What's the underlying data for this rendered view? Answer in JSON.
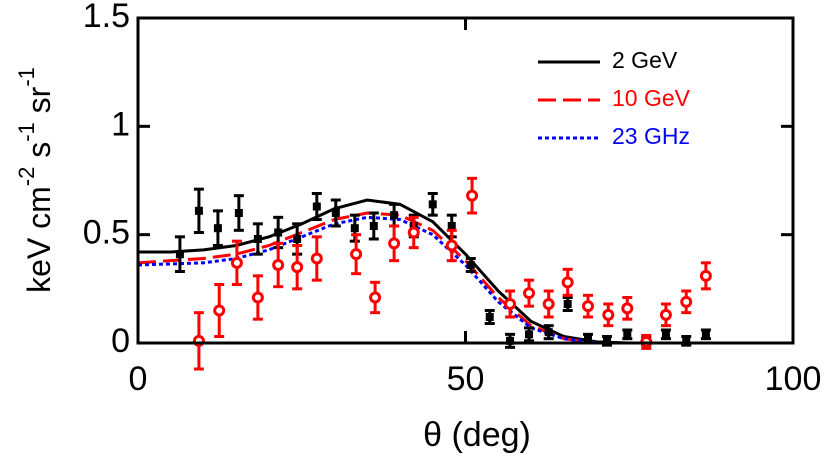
{
  "chart_data": {
    "type": "line",
    "xlabel": "θ (deg)",
    "ylabel": [
      "keV cm",
      "-2",
      " s",
      "-1",
      " sr",
      "-1"
    ],
    "xlim": [
      0,
      100
    ],
    "ylim": [
      0,
      1.5
    ],
    "xticks": [
      0,
      50,
      100
    ],
    "yticks": [
      0,
      0.5,
      1,
      1.5
    ],
    "legend": "upper right",
    "series": [
      {
        "type": "line",
        "name": "2 GeV",
        "color": "#000000",
        "dash": "solid",
        "x": [
          0,
          5,
          10,
          15,
          20,
          25,
          30,
          35,
          40,
          45,
          50,
          55,
          60,
          65,
          70,
          75,
          80,
          85,
          90,
          95,
          100
        ],
        "values": [
          0.42,
          0.42,
          0.43,
          0.45,
          0.49,
          0.55,
          0.62,
          0.66,
          0.64,
          0.56,
          0.41,
          0.24,
          0.1,
          0.03,
          0.005,
          0,
          0,
          0,
          0,
          0,
          0
        ]
      },
      {
        "type": "line",
        "name": "10 GeV",
        "color": "#ff0000",
        "dash": "dashed",
        "x": [
          0,
          5,
          10,
          15,
          20,
          25,
          30,
          35,
          40,
          45,
          50,
          55,
          60,
          65,
          70,
          75,
          80,
          85,
          90,
          95,
          100
        ],
        "values": [
          0.37,
          0.38,
          0.39,
          0.41,
          0.45,
          0.51,
          0.57,
          0.6,
          0.59,
          0.52,
          0.38,
          0.21,
          0.08,
          0.02,
          0,
          0,
          0,
          0,
          0,
          0,
          0
        ]
      },
      {
        "type": "line",
        "name": "23 GHz",
        "color": "#0000ff",
        "dash": "dotted",
        "x": [
          0,
          5,
          10,
          15,
          20,
          25,
          30,
          35,
          40,
          45,
          50,
          55,
          60,
          65,
          70,
          75,
          80,
          85,
          90,
          95,
          100
        ],
        "values": [
          0.36,
          0.365,
          0.37,
          0.39,
          0.43,
          0.49,
          0.55,
          0.58,
          0.57,
          0.5,
          0.36,
          0.19,
          0.07,
          0.02,
          0,
          0,
          0,
          0,
          0,
          0,
          0
        ]
      },
      {
        "type": "errorbar",
        "color": "#000000",
        "marker": "square",
        "x": [
          6.4,
          9.3,
          12.2,
          15.4,
          18.3,
          21.4,
          24.3,
          27.3,
          30.2,
          33.1,
          36,
          39.1,
          42.1,
          45,
          47.9,
          50.8,
          53.7,
          56.8,
          59.7,
          62.7,
          65.6,
          68.7,
          71.6,
          74.7,
          77.6,
          80.6,
          83.7,
          86.7
        ],
        "values": [
          0.41,
          0.61,
          0.53,
          0.6,
          0.48,
          0.51,
          0.48,
          0.63,
          0.6,
          0.53,
          0.54,
          0.59,
          0.54,
          0.64,
          0.54,
          0.36,
          0.12,
          0.01,
          0.04,
          0.05,
          0.18,
          0.02,
          0.01,
          0.04,
          0.01,
          0.04,
          0.01,
          0.04
        ],
        "errors": [
          0.08,
          0.1,
          0.08,
          0.08,
          0.07,
          0.07,
          0.07,
          0.06,
          0.06,
          0.06,
          0.06,
          0.05,
          0.05,
          0.05,
          0.05,
          0.03,
          0.03,
          0.03,
          0.03,
          0.03,
          0.03,
          0.02,
          0.02,
          0.02,
          0.02,
          0.02,
          0.02,
          0.02
        ]
      },
      {
        "type": "errorbar",
        "color": "#ff0000",
        "marker": "circle",
        "x": [
          9.3,
          12.4,
          15.1,
          18.3,
          21.4,
          24.3,
          27.3,
          33.3,
          36.2,
          39.1,
          42.1,
          47.9,
          51,
          56.8,
          59.7,
          62.7,
          65.6,
          68.7,
          71.8,
          74.7,
          77.6,
          80.6,
          83.7,
          86.7
        ],
        "values": [
          0.01,
          0.15,
          0.37,
          0.21,
          0.36,
          0.35,
          0.39,
          0.41,
          0.21,
          0.46,
          0.51,
          0.45,
          0.68,
          0.18,
          0.23,
          0.18,
          0.28,
          0.17,
          0.13,
          0.16,
          0.005,
          0.13,
          0.19,
          0.31
        ],
        "errors": [
          0.13,
          0.12,
          0.1,
          0.1,
          0.1,
          0.1,
          0.1,
          0.09,
          0.07,
          0.08,
          0.07,
          0.07,
          0.08,
          0.06,
          0.06,
          0.06,
          0.06,
          0.05,
          0.05,
          0.05,
          0.03,
          0.05,
          0.05,
          0.06
        ]
      }
    ]
  }
}
